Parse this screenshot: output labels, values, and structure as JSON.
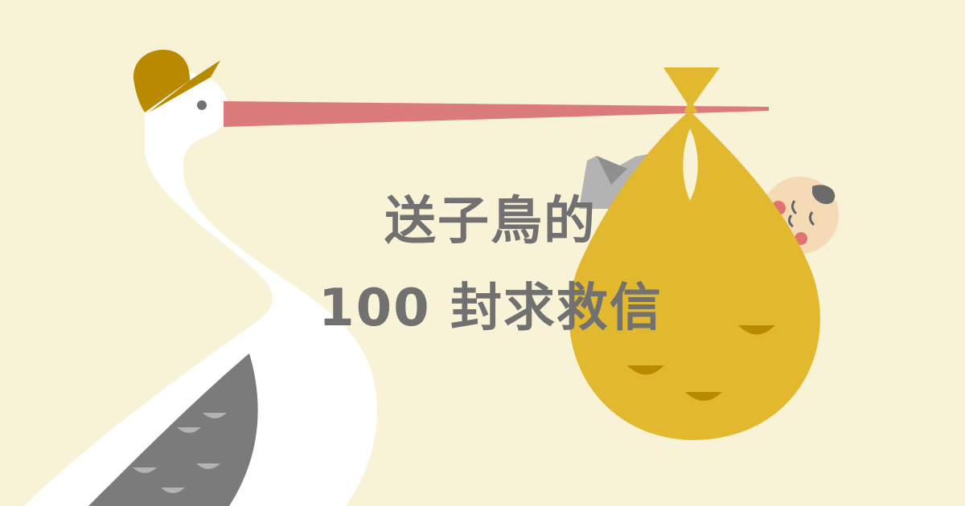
{
  "title": {
    "line1": "送子鳥的",
    "line2": "100 封求救信"
  },
  "colors": {
    "background": "#f8f2d6",
    "stork_body": "#ffffff",
    "stork_wing": "#7b7b7b",
    "beak": "#dc7b7b",
    "hat": "#b98a00",
    "bundle": "#e1b82e",
    "baby_skin": "#f5dbb5",
    "baby_cheek": "#e27272",
    "title_text": "#717171"
  },
  "illustration": {
    "elements": [
      "stork",
      "hat",
      "beak",
      "bundle",
      "baby"
    ]
  }
}
